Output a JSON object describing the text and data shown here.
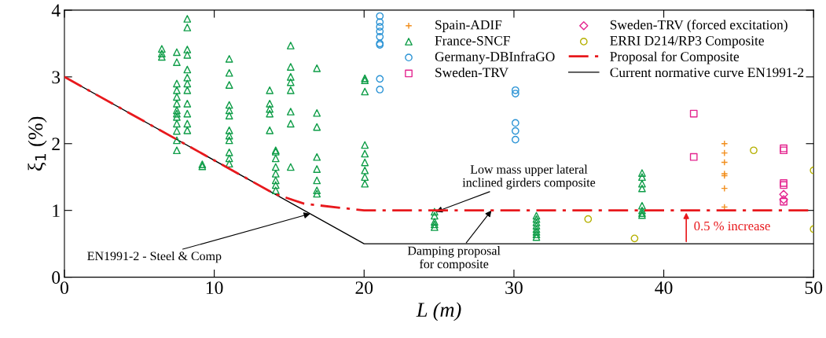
{
  "chart_data": {
    "type": "scatter",
    "xlabel": "L (m)",
    "ylabel": "ξ$_{1}$ (%)",
    "xlim": [
      0,
      50
    ],
    "ylim": [
      0,
      4
    ],
    "xticks": [
      0,
      10,
      20,
      30,
      40,
      50
    ],
    "yticks": [
      0,
      1,
      2,
      3,
      4
    ],
    "grid": false,
    "legend": "top right",
    "series": [
      {
        "name": "Spain-ADIF",
        "color": "#f28e1c",
        "marker": "cross",
        "x": [
          44.05,
          44.05,
          44.05,
          44.05,
          44.05,
          44.05,
          44.05
        ],
        "values": [
          2.0,
          1.86,
          1.72,
          1.55,
          1.52,
          1.33,
          1.05
        ]
      },
      {
        "name": "France-SNCF",
        "color": "#0f9d48",
        "marker": "triangle",
        "x": [
          6.5,
          6.5,
          6.5,
          7.5,
          7.5,
          7.5,
          7.5,
          7.5,
          7.5,
          7.5,
          7.5,
          7.5,
          7.5,
          7.5,
          7.5,
          7.5,
          8.2,
          8.2,
          8.2,
          8.2,
          8.2,
          8.2,
          8.2,
          8.2,
          8.2,
          8.2,
          8.2,
          8.2,
          9.2,
          9.2,
          11,
          11,
          11,
          11,
          11,
          11,
          11,
          11,
          11,
          11,
          11,
          11,
          13.7,
          13.7,
          13.7,
          13.7,
          13.7,
          14.1,
          14.1,
          14.1,
          14.1,
          14.1,
          14.1,
          14.1,
          14.1,
          15.1,
          15.1,
          15.1,
          15.1,
          15.1,
          15.1,
          15.1,
          15.1,
          16.85,
          16.85,
          16.85,
          16.85,
          16.85,
          16.85,
          16.85,
          16.85,
          20.05,
          20.05,
          20.05,
          20.05,
          20.05,
          20.05,
          20.05,
          20.05,
          20.05,
          24.7,
          24.7,
          24.7,
          24.7,
          24.7,
          31.5,
          31.5,
          31.5,
          31.5,
          31.5,
          31.5,
          31.5,
          31.5,
          38.55,
          38.55,
          38.55,
          38.55,
          38.55,
          38.55,
          38.55,
          38.55
        ],
        "values": [
          3.42,
          3.35,
          3.3,
          3.37,
          3.22,
          2.9,
          2.8,
          2.7,
          2.6,
          2.5,
          2.45,
          2.4,
          2.3,
          2.19,
          2.05,
          1.9,
          3.87,
          3.74,
          3.41,
          3.33,
          3.11,
          2.99,
          2.9,
          2.8,
          2.6,
          2.45,
          2.3,
          2.2,
          1.69,
          1.66,
          3.27,
          3.06,
          2.88,
          2.58,
          2.5,
          2.42,
          2.2,
          2.12,
          2.05,
          1.87,
          1.78,
          1.7,
          2.8,
          2.6,
          2.52,
          2.45,
          2.2,
          1.9,
          1.88,
          1.78,
          1.65,
          1.55,
          1.45,
          1.38,
          1.3,
          3.47,
          3.15,
          3.0,
          2.92,
          2.8,
          2.48,
          2.3,
          1.65,
          3.13,
          2.46,
          2.25,
          1.8,
          1.62,
          1.45,
          1.3,
          1.25,
          2.98,
          2.95,
          2.78,
          1.98,
          1.85,
          1.72,
          1.6,
          1.5,
          1.4,
          0.98,
          0.92,
          0.83,
          0.79,
          0.75,
          0.92,
          0.87,
          0.82,
          0.77,
          0.72,
          0.68,
          0.64,
          0.6,
          1.56,
          1.5,
          1.4,
          1.33,
          1.07,
          1.0,
          0.96,
          0.93
        ]
      },
      {
        "name": "Germany-DBInfraGO",
        "color": "#2a93d5",
        "marker": "circle",
        "x": [
          21.05,
          21.05,
          21.05,
          21.05,
          21.05,
          21.05,
          21.05,
          21.05,
          21.05,
          30.1,
          30.1,
          30.1,
          30.1,
          30.1
        ],
        "values": [
          3.91,
          3.82,
          3.75,
          3.68,
          3.6,
          3.5,
          3.48,
          2.97,
          2.81,
          2.8,
          2.75,
          2.31,
          2.19,
          2.06
        ]
      },
      {
        "name": "Sweden-TRV",
        "color": "#e4258f",
        "marker": "square",
        "x": [
          42.0,
          42.0,
          48.0,
          48.0,
          48.0,
          48.0,
          48.0
        ],
        "values": [
          2.45,
          1.8,
          1.93,
          1.9,
          1.41,
          1.38,
          1.13
        ]
      },
      {
        "name": "Sweden-TRV (forced excitation)",
        "color": "#e4258f",
        "marker": "diamond",
        "x": [
          48.0,
          48.0
        ],
        "values": [
          1.24,
          1.16
        ]
      },
      {
        "name": "ERRI D214/RP3 Composite",
        "color": "#b5b000",
        "marker": "circle",
        "x": [
          34.95,
          38.05,
          46.0,
          50.0,
          50.0
        ],
        "values": [
          0.87,
          0.58,
          1.9,
          1.6,
          0.72
        ]
      },
      {
        "name": "Proposal for Composite",
        "type": "line",
        "color": "#e8191d",
        "line_style": "dashed",
        "marker": "none",
        "x": [
          0,
          14,
          16,
          20,
          50
        ],
        "values": [
          3,
          1.25,
          1.1,
          1.0,
          1.0
        ]
      },
      {
        "name": "Current normative curve EN1991-2",
        "type": "line",
        "color": "#000000",
        "line_style": "solid",
        "marker": "none",
        "x": [
          0,
          20,
          50
        ],
        "values": [
          3,
          0.5,
          0.5
        ]
      }
    ],
    "annotations": [
      {
        "text": "EN1991-2 - Steel & Comp",
        "x": 16.4,
        "y": 0.95
      },
      {
        "text": "Damping proposal\nfor composite",
        "x": 28.5,
        "y": 1.0
      },
      {
        "text": "Low mass upper lateral\ninclined girders composite",
        "x": 24.8,
        "y": 0.98
      },
      {
        "text": "0.5 % increase",
        "x": 41.5,
        "y": 1.0
      }
    ]
  }
}
